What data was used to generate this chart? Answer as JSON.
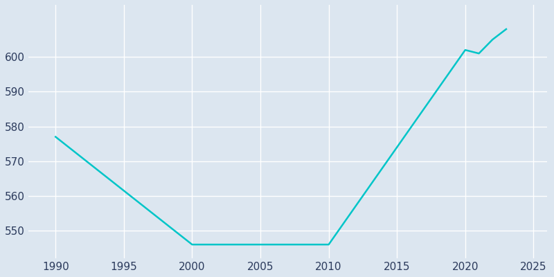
{
  "years": [
    1990,
    2000,
    2010,
    2020,
    2021,
    2022,
    2023
  ],
  "population": [
    577,
    546,
    546,
    602,
    601,
    605,
    608
  ],
  "line_color": "#00C5C8",
  "line_width": 1.8,
  "background_color": "#DCE6F0",
  "grid_color": "#FFFFFF",
  "xlim": [
    1988,
    2026
  ],
  "ylim": [
    542,
    615
  ],
  "xticks": [
    1990,
    1995,
    2000,
    2005,
    2010,
    2015,
    2020,
    2025
  ],
  "yticks": [
    550,
    560,
    570,
    580,
    590,
    600
  ],
  "tick_color": "#2B3A5C",
  "tick_fontsize": 11
}
